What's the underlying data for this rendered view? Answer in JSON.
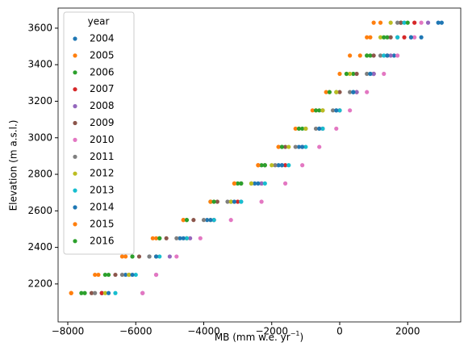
{
  "chart_data": {
    "type": "scatter",
    "xlabel": {
      "text": "MB (mm w.e. yr",
      "sup": "−1",
      "end": ")"
    },
    "ylabel": "Elevation (m a.s.l.)",
    "legend_title": "year",
    "legend": "upper left",
    "xlim": [
      -8285,
      3561
    ],
    "ylim": [
      1992,
      3710
    ],
    "xticks": [
      {
        "value": -8000,
        "label": "−8000"
      },
      {
        "value": -6000,
        "label": "−6000"
      },
      {
        "value": -4000,
        "label": "−4000"
      },
      {
        "value": -2000,
        "label": "−2000"
      },
      0,
      2000
    ],
    "yticks": [
      2200,
      2400,
      2600,
      2800,
      3000,
      3200,
      3400,
      3600
    ],
    "series": [
      {
        "name": "2004",
        "color": "#1f77b4",
        "x": [
          -7000,
          -6300,
          -5600,
          -4700,
          -3900,
          -3200,
          -2500,
          -1800,
          -1200,
          -600,
          -100,
          400,
          1000,
          1600,
          2400,
          3000
        ],
        "values": [
          2150,
          2250,
          2350,
          2450,
          2550,
          2650,
          2750,
          2850,
          2950,
          3050,
          3150,
          3250,
          3350,
          3450,
          3550,
          3630
        ]
      },
      {
        "name": "2005",
        "color": "#ff7f0e",
        "x": [
          -7900,
          -7200,
          -6400,
          -5500,
          -4600,
          -3800,
          -3100,
          -2400,
          -1800,
          -1200,
          -700,
          -300,
          200,
          600,
          900,
          1000
        ],
        "values": [
          2150,
          2250,
          2350,
          2450,
          2550,
          2650,
          2750,
          2850,
          2950,
          3050,
          3150,
          3250,
          3350,
          3450,
          3550,
          3630
        ]
      },
      {
        "name": "2006",
        "color": "#2ca02c",
        "x": [
          -7500,
          -6800,
          -6100,
          -5300,
          -4500,
          -3800,
          -3000,
          -2300,
          -1700,
          -1100,
          -600,
          -100,
          400,
          900,
          1400,
          1800
        ],
        "values": [
          2150,
          2250,
          2350,
          2450,
          2550,
          2650,
          2750,
          2850,
          2950,
          3050,
          3150,
          3250,
          3350,
          3450,
          3550,
          3630
        ]
      },
      {
        "name": "2007",
        "color": "#d62728",
        "x": [
          -7000,
          -6200,
          -5400,
          -4500,
          -3700,
          -3000,
          -2300,
          -1600,
          -1100,
          -500,
          0,
          500,
          1000,
          1400,
          1900,
          2200
        ],
        "values": [
          2150,
          2250,
          2350,
          2450,
          2550,
          2650,
          2750,
          2850,
          2950,
          3050,
          3150,
          3250,
          3350,
          3450,
          3550,
          3630
        ]
      },
      {
        "name": "2008",
        "color": "#9467bd",
        "x": [
          -5800,
          -5400,
          -5000,
          -4400,
          -3700,
          -2900,
          -2300,
          -1700,
          -1100,
          -500,
          0,
          500,
          1000,
          1500,
          2100,
          2600
        ],
        "values": [
          2150,
          2250,
          2350,
          2450,
          2550,
          2650,
          2750,
          2850,
          2950,
          3050,
          3150,
          3250,
          3350,
          3450,
          3550,
          3630
        ]
      },
      {
        "name": "2009",
        "color": "#8c564b",
        "x": [
          -7300,
          -6600,
          -5900,
          -5100,
          -4300,
          -3600,
          -2900,
          -2200,
          -1600,
          -1000,
          -500,
          0,
          500,
          1000,
          1500,
          1800
        ],
        "values": [
          2150,
          2250,
          2350,
          2450,
          2550,
          2650,
          2750,
          2850,
          2950,
          3050,
          3150,
          3250,
          3350,
          3450,
          3550,
          3630
        ]
      },
      {
        "name": "2010",
        "color": "#e377c2",
        "x": [
          -5800,
          -5400,
          -4800,
          -4100,
          -3200,
          -2300,
          -1600,
          -1100,
          -600,
          -100,
          300,
          800,
          1300,
          1700,
          2200,
          2400
        ],
        "values": [
          2150,
          2250,
          2350,
          2450,
          2550,
          2650,
          2750,
          2850,
          2950,
          3050,
          3150,
          3250,
          3350,
          3450,
          3550,
          3630
        ]
      },
      {
        "name": "2011",
        "color": "#7f7f7f",
        "x": [
          -7200,
          -6400,
          -5600,
          -4800,
          -4000,
          -3300,
          -2600,
          -1900,
          -1300,
          -700,
          -200,
          300,
          800,
          1200,
          1700,
          1700
        ],
        "values": [
          2150,
          2250,
          2350,
          2450,
          2550,
          2650,
          2750,
          2850,
          2950,
          3050,
          3150,
          3250,
          3350,
          3450,
          3550,
          3630
        ]
      },
      {
        "name": "2012",
        "color": "#bcbd22",
        "x": [
          -6900,
          -6200,
          -5400,
          -4500,
          -3800,
          -3200,
          -2600,
          -2000,
          -1500,
          -1000,
          -500,
          -100,
          300,
          800,
          1200,
          1500
        ],
        "values": [
          2150,
          2250,
          2350,
          2450,
          2550,
          2650,
          2750,
          2850,
          2950,
          3050,
          3150,
          3250,
          3350,
          3450,
          3550,
          3630
        ]
      },
      {
        "name": "2013",
        "color": "#17becf",
        "x": [
          -6600,
          -6000,
          -5300,
          -4500,
          -3700,
          -2900,
          -2200,
          -1500,
          -1000,
          -500,
          0,
          400,
          900,
          1300,
          1700,
          1900
        ],
        "values": [
          2150,
          2250,
          2350,
          2450,
          2550,
          2650,
          2750,
          2850,
          2950,
          3050,
          3150,
          3250,
          3350,
          3450,
          3550,
          3630
        ]
      },
      {
        "name": "2014",
        "color": "#1f77b4",
        "x": [
          -6800,
          -6100,
          -5400,
          -4600,
          -3800,
          -3100,
          -2400,
          -1700,
          -1100,
          -600,
          -100,
          400,
          900,
          1400,
          2100,
          2900
        ],
        "values": [
          2150,
          2250,
          2350,
          2450,
          2550,
          2650,
          2750,
          2850,
          2950,
          3050,
          3150,
          3250,
          3350,
          3450,
          3550,
          3630
        ]
      },
      {
        "name": "2015",
        "color": "#ff7f0e",
        "x": [
          -7900,
          -7100,
          -6300,
          -5400,
          -4600,
          -3800,
          -3100,
          -2400,
          -1800,
          -1300,
          -800,
          -400,
          0,
          300,
          800,
          1200
        ],
        "values": [
          2150,
          2250,
          2350,
          2450,
          2550,
          2650,
          2750,
          2850,
          2950,
          3050,
          3150,
          3250,
          3350,
          3450,
          3550,
          3630
        ]
      },
      {
        "name": "2016",
        "color": "#2ca02c",
        "x": [
          -7600,
          -6900,
          -6100,
          -5300,
          -4500,
          -3700,
          -2900,
          -2200,
          -1700,
          -1200,
          -700,
          -300,
          200,
          800,
          1300,
          2000
        ],
        "values": [
          2150,
          2250,
          2350,
          2450,
          2550,
          2650,
          2750,
          2850,
          2950,
          3050,
          3150,
          3250,
          3350,
          3450,
          3550,
          3630
        ]
      }
    ]
  }
}
